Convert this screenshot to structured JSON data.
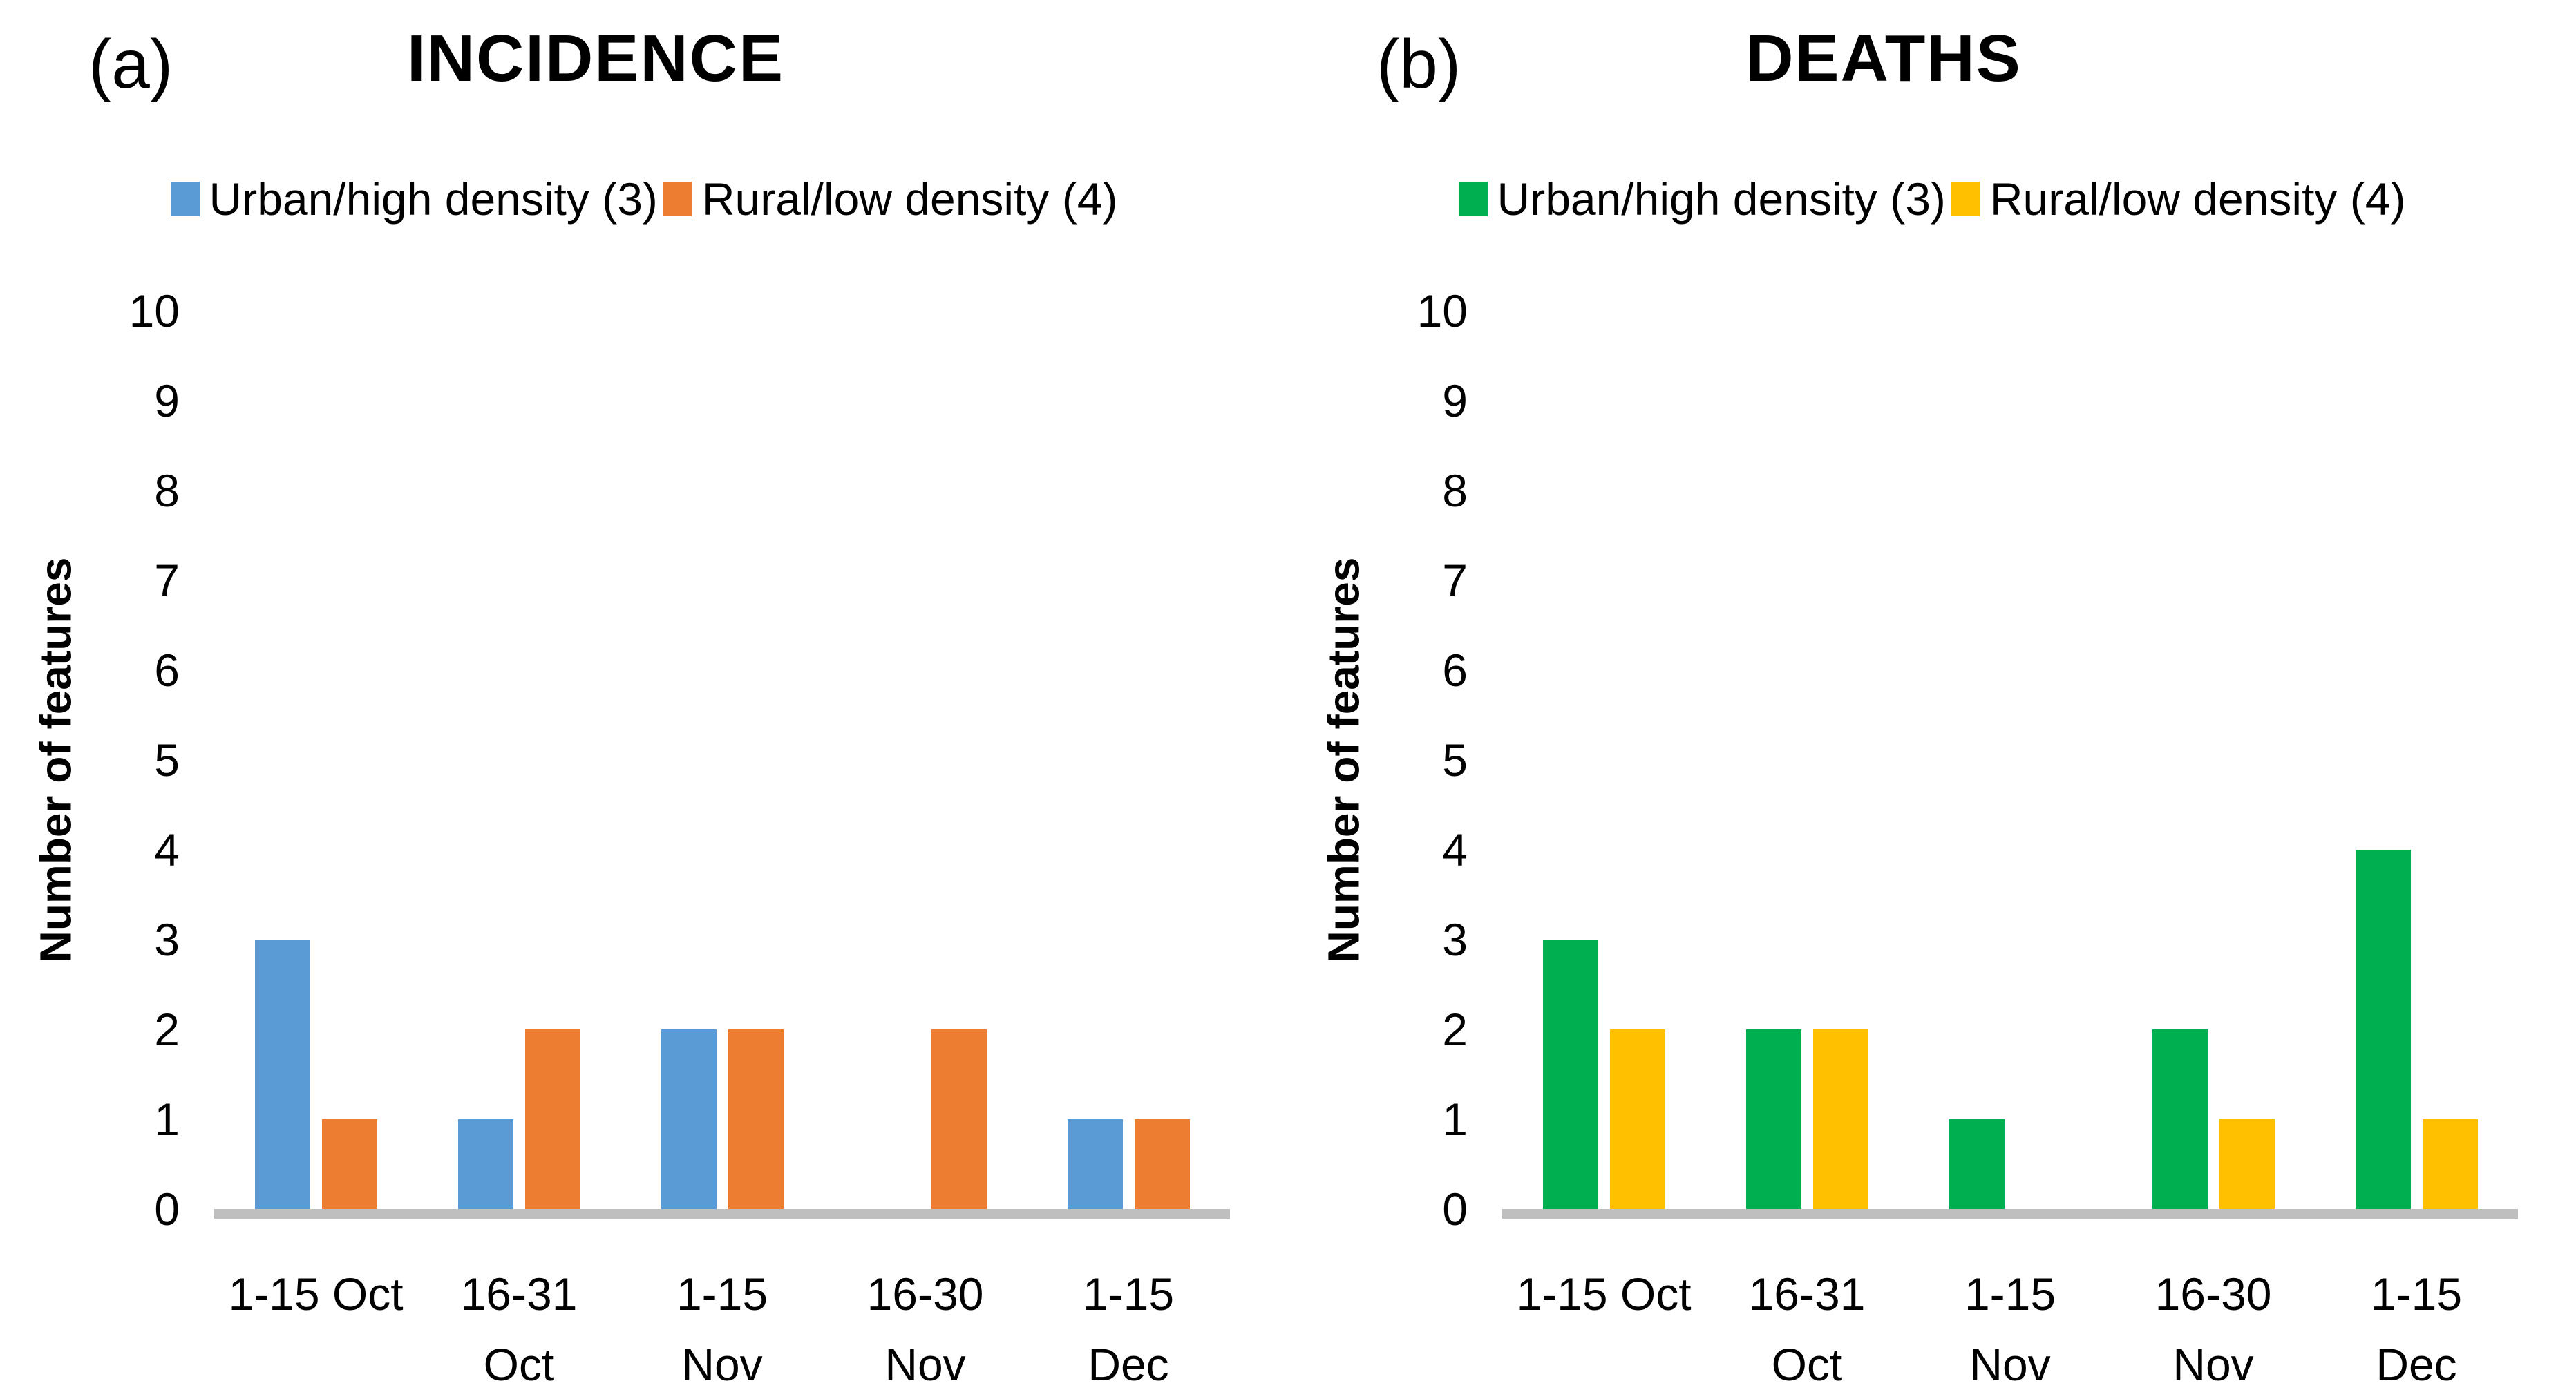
{
  "figure": {
    "background": "#ffffff",
    "axis_line_color": "#bfbfbf",
    "text_color": "#000000"
  },
  "chart_data": [
    {
      "type": "bar",
      "panel_letter": "(a)",
      "title": "INCIDENCE",
      "ylabel": "Number of features",
      "xlabel": "",
      "ylim": [
        0,
        10
      ],
      "yticks": [
        0,
        1,
        2,
        3,
        4,
        5,
        6,
        7,
        8,
        9,
        10
      ],
      "grid": false,
      "legend_position": "top",
      "categories": [
        "1-15 Oct",
        "16-31 Oct",
        "1-15 Nov",
        "16-30 Nov",
        "1-15 Dec"
      ],
      "category_lines": [
        [
          "1-15 Oct"
        ],
        [
          "16-31",
          "Oct"
        ],
        [
          "1-15",
          "Nov"
        ],
        [
          "16-30",
          "Nov"
        ],
        [
          "1-15",
          "Dec"
        ]
      ],
      "series": [
        {
          "name": "Urban/high density (3)",
          "color": "#5b9bd5",
          "values": [
            3,
            1,
            2,
            0,
            1
          ]
        },
        {
          "name": "Rural/low density (4)",
          "color": "#ed7d31",
          "values": [
            1,
            2,
            2,
            2,
            1
          ]
        }
      ]
    },
    {
      "type": "bar",
      "panel_letter": "(b)",
      "title": "DEATHS",
      "ylabel": "Number of features",
      "xlabel": "",
      "ylim": [
        0,
        10
      ],
      "yticks": [
        0,
        1,
        2,
        3,
        4,
        5,
        6,
        7,
        8,
        9,
        10
      ],
      "grid": false,
      "legend_position": "top",
      "categories": [
        "1-15 Oct",
        "16-31 Oct",
        "1-15 Nov",
        "16-30 Nov",
        "1-15 Dec"
      ],
      "category_lines": [
        [
          "1-15 Oct"
        ],
        [
          "16-31",
          "Oct"
        ],
        [
          "1-15",
          "Nov"
        ],
        [
          "16-30",
          "Nov"
        ],
        [
          "1-15",
          "Dec"
        ]
      ],
      "series": [
        {
          "name": "Urban/high density (3)",
          "color": "#00b050",
          "values": [
            3,
            2,
            1,
            2,
            4
          ]
        },
        {
          "name": "Rural/low density (4)",
          "color": "#ffc000",
          "values": [
            2,
            2,
            0,
            1,
            1
          ]
        }
      ]
    }
  ]
}
